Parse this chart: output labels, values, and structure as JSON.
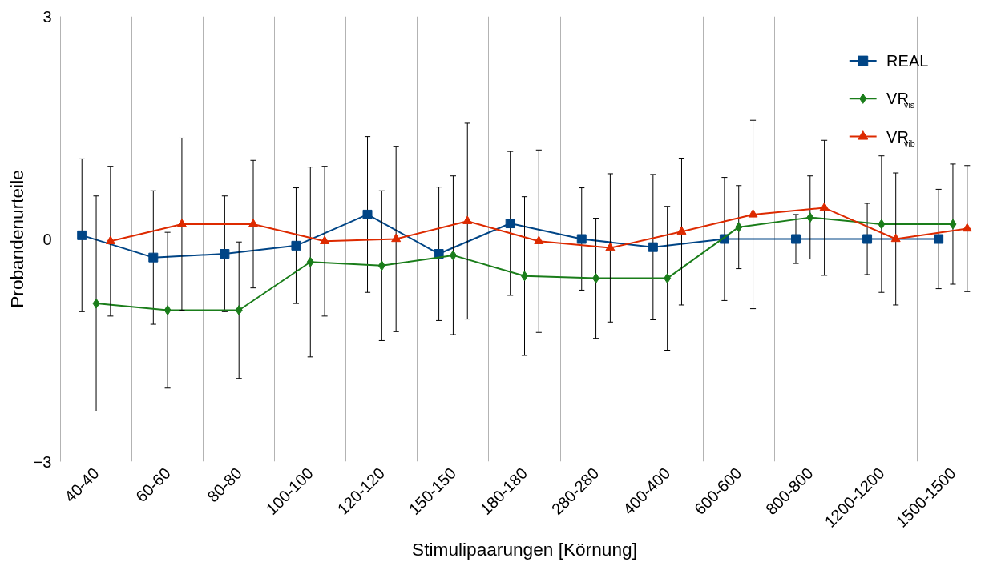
{
  "chart_data": {
    "type": "line",
    "xlabel": "Stimulipaarungen [Körnung]",
    "ylabel": "Probandenurteile",
    "categories": [
      "40-40",
      "60-60",
      "80-80",
      "100-100",
      "120-120",
      "150-150",
      "180-180",
      "280-280",
      "400-400",
      "600-600",
      "800-800",
      "1200-1200",
      "1500-1500"
    ],
    "ylim": [
      -3,
      3
    ],
    "yticks": [
      -3,
      0,
      3
    ],
    "grid": "x",
    "legend": "top right",
    "series": [
      {
        "name": "REAL",
        "color": "#004586",
        "marker": "square",
        "values": [
          0.05,
          -0.25,
          -0.2,
          -0.09,
          0.33,
          -0.2,
          0.21,
          0.0,
          -0.11,
          0.0,
          0.0,
          0.0,
          0.0
        ],
        "errors": [
          1.03,
          0.9,
          0.78,
          0.78,
          1.05,
          0.9,
          0.97,
          0.69,
          0.98,
          0.83,
          0.33,
          0.48,
          0.67
        ]
      },
      {
        "name": "VR$_{vis}$",
        "color": "#1a7d1a",
        "marker": "diamond",
        "values": [
          -0.87,
          -0.96,
          -0.96,
          -0.31,
          -0.36,
          -0.22,
          -0.5,
          -0.53,
          -0.53,
          0.16,
          0.29,
          0.2,
          0.2
        ],
        "errors": [
          1.45,
          1.05,
          0.92,
          1.28,
          1.01,
          1.07,
          1.07,
          0.81,
          0.97,
          0.56,
          0.56,
          0.92,
          0.81
        ]
      },
      {
        "name": "VR$_{vib}$",
        "color": "#dd2a00",
        "marker": "triangle",
        "values": [
          -0.03,
          0.2,
          0.2,
          -0.03,
          0.0,
          0.24,
          -0.03,
          -0.12,
          0.1,
          0.33,
          0.42,
          0.0,
          0.14
        ],
        "errors": [
          1.01,
          1.16,
          0.86,
          1.01,
          1.25,
          1.32,
          1.23,
          1.0,
          0.99,
          1.27,
          0.91,
          0.89,
          0.85
        ]
      }
    ]
  }
}
